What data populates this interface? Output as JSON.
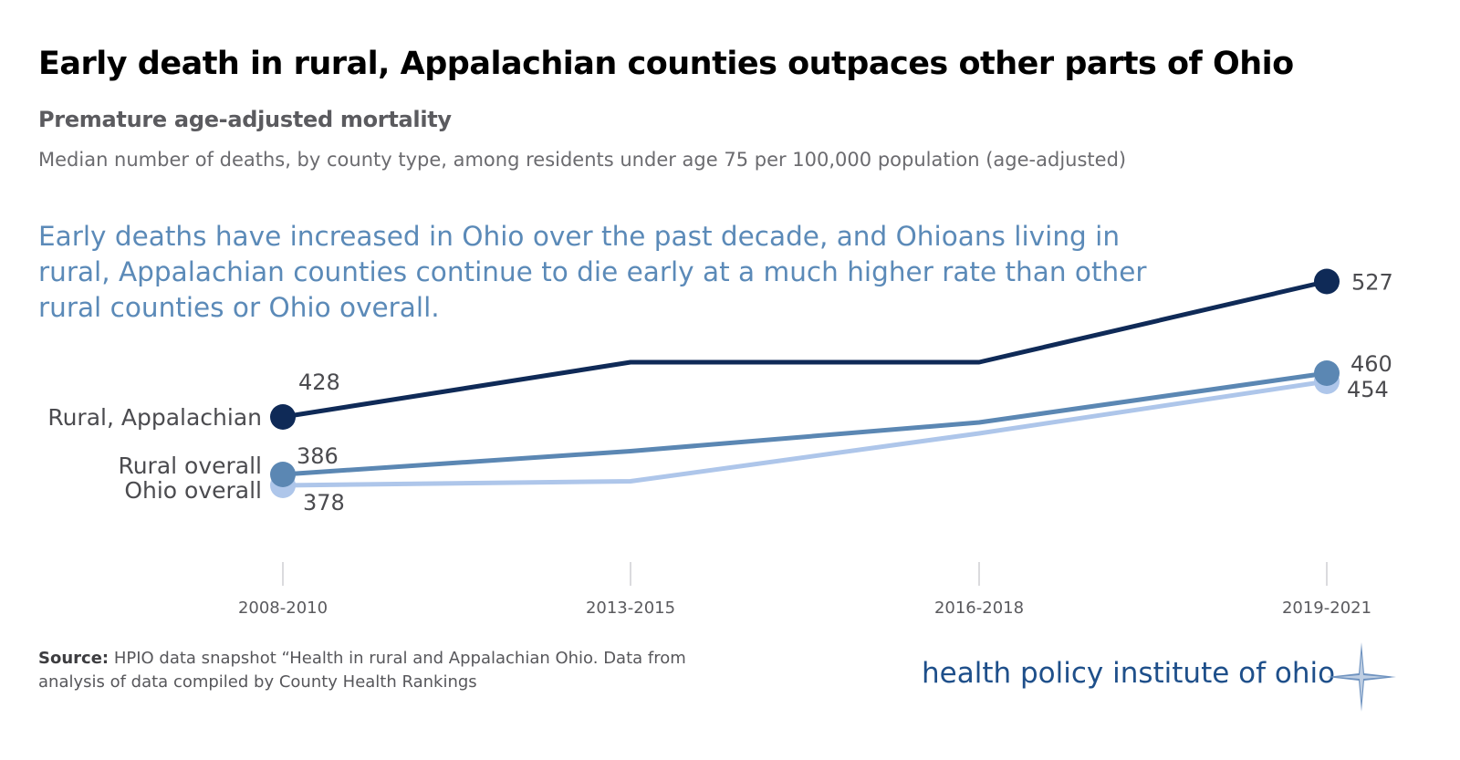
{
  "title": "Early death in rural, Appalachian counties outpaces other parts of Ohio",
  "subtitle": "Premature age-adjusted mortality",
  "description": "Median number of deaths, by county type, among residents under age 75 per 100,000 population (age-adjusted)",
  "annotation": "Early deaths have increased in Ohio over the past decade, and Ohioans living in rural, Appalachian counties continue to die early at a much higher rate than other rural counties or Ohio overall.",
  "source": {
    "label": "Source:",
    "text": " HPIO data snapshot “Health in rural and Appalachian Ohio. Data from analysis of data compiled by County Health Rankings"
  },
  "logo": {
    "text": "health policy institute of ohio"
  },
  "colors": {
    "rural_appalachian": "#0f2a57",
    "rural_overall": "#5b87b3",
    "ohio_overall": "#aec6ea",
    "annotation": "#5b8ab8"
  },
  "chart_data": {
    "type": "line",
    "categories": [
      "2008-2010",
      "2013-2015",
      "2016-2018",
      "2019-2021"
    ],
    "series": [
      {
        "name": "Rural, Appalachian",
        "values": [
          428,
          468,
          468,
          527
        ],
        "labels": [
          "428",
          null,
          null,
          "527"
        ],
        "color": "#0f2a57"
      },
      {
        "name": "Rural overall",
        "values": [
          386,
          403,
          424,
          460
        ],
        "labels": [
          "386",
          null,
          null,
          "460"
        ],
        "color": "#5b87b3"
      },
      {
        "name": "Ohio overall",
        "values": [
          378,
          381,
          416,
          454
        ],
        "labels": [
          "378",
          null,
          null,
          "454"
        ],
        "color": "#aec6ea"
      }
    ],
    "ylim": [
      300,
      560
    ],
    "grid": false,
    "legend": "direct labels at left",
    "markers": "first and last points"
  }
}
